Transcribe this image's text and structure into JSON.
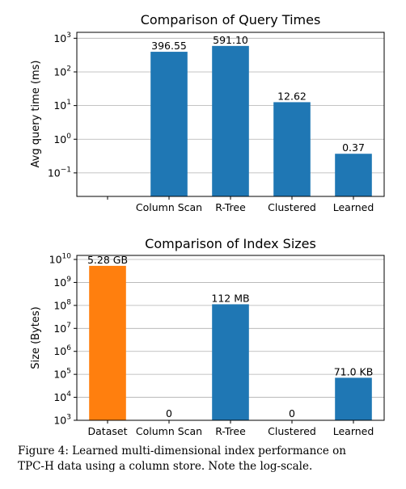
{
  "chart_data": [
    {
      "type": "bar",
      "title": "Comparison of Query Times",
      "ylabel": "Avg query time (ms)",
      "yscale": "log",
      "ylim": [
        0.02,
        1500
      ],
      "yticks": [
        {
          "base": "10",
          "exp": "−1",
          "value": 0.1
        },
        {
          "base": "10",
          "exp": "0",
          "value": 1
        },
        {
          "base": "10",
          "exp": "1",
          "value": 10
        },
        {
          "base": "10",
          "exp": "2",
          "value": 100
        },
        {
          "base": "10",
          "exp": "3",
          "value": 1000
        }
      ],
      "grid": "y",
      "categories": [
        "",
        "Column Scan",
        "R-Tree",
        "Clustered",
        "Learned"
      ],
      "values": [
        null,
        396.55,
        591.1,
        12.62,
        0.37
      ],
      "labels": [
        "",
        "396.55",
        "591.10",
        "12.62",
        "0.37"
      ],
      "colors": [
        "#1f77b4",
        "#1f77b4",
        "#1f77b4",
        "#1f77b4",
        "#1f77b4"
      ]
    },
    {
      "type": "bar",
      "title": "Comparison of Index Sizes",
      "ylabel": "Size (Bytes)",
      "yscale": "log",
      "ylim": [
        1000,
        15000000000
      ],
      "yticks": [
        {
          "base": "10",
          "exp": "3",
          "value": 1000
        },
        {
          "base": "10",
          "exp": "4",
          "value": 10000
        },
        {
          "base": "10",
          "exp": "5",
          "value": 100000
        },
        {
          "base": "10",
          "exp": "6",
          "value": 1000000
        },
        {
          "base": "10",
          "exp": "7",
          "value": 10000000
        },
        {
          "base": "10",
          "exp": "8",
          "value": 100000000
        },
        {
          "base": "10",
          "exp": "9",
          "value": 1000000000
        },
        {
          "base": "10",
          "exp": "10",
          "value": 10000000000
        }
      ],
      "grid": "y",
      "categories": [
        "Dataset",
        "Column Scan",
        "R-Tree",
        "Clustered",
        "Learned"
      ],
      "values": [
        5280000000,
        0,
        112000000,
        0,
        71000
      ],
      "labels": [
        "5.28 GB",
        "0",
        "112 MB",
        "0",
        "71.0 KB"
      ],
      "colors": [
        "#ff7f0e",
        "#1f77b4",
        "#1f77b4",
        "#1f77b4",
        "#1f77b4"
      ]
    }
  ],
  "caption": {
    "line1": "Figure 4:  Learned multi-dimensional index performance on",
    "line2": "TPC-H data using a column store. Note the log-scale."
  }
}
